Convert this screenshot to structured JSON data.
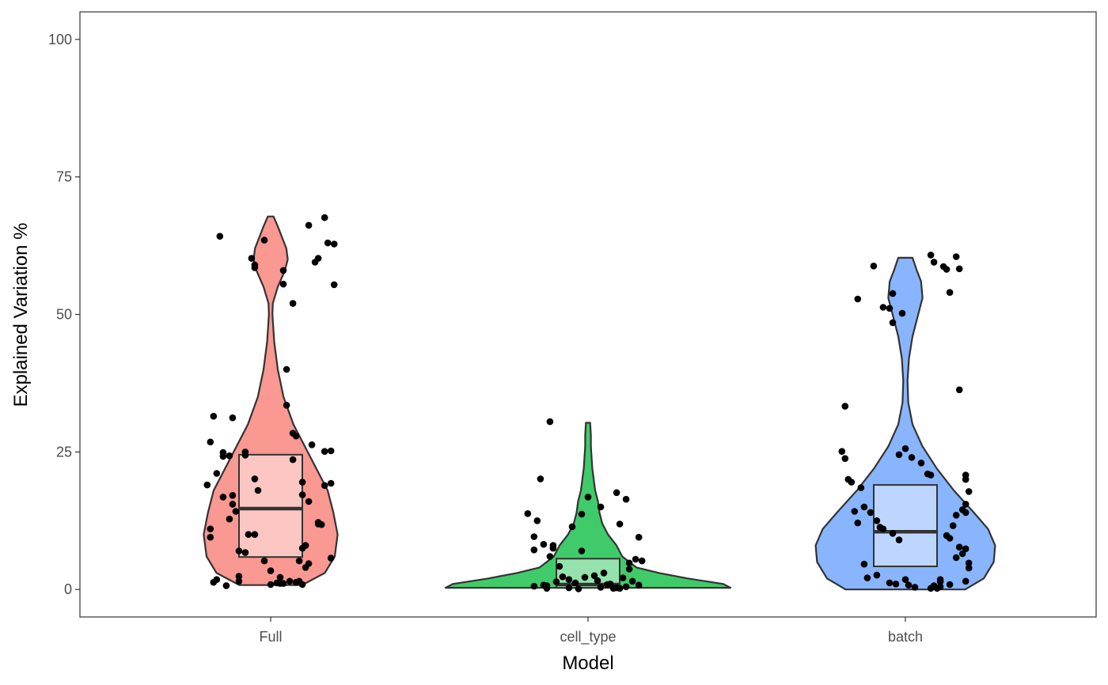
{
  "chart_data": {
    "type": "violin",
    "title": "",
    "xlabel": "Model",
    "ylabel": "Explained Variation %",
    "ylim": [
      -5,
      105
    ],
    "yticks": [
      0,
      25,
      50,
      75,
      100
    ],
    "ytick_labels": [
      "0",
      "25",
      "50",
      "75",
      "100"
    ],
    "grid": false,
    "legend": "none",
    "categories": [
      "Full",
      "cell_type",
      "batch"
    ],
    "colors": [
      "#F8766D",
      "#00BA38",
      "#619CFF"
    ],
    "boxplots": [
      {
        "category": "Full",
        "q1": 5.9,
        "median": 14.7,
        "q3": 24.5
      },
      {
        "category": "cell_type",
        "q1": 0.3,
        "median": 0.9,
        "q3": 5.6
      },
      {
        "category": "batch",
        "q1": 4.2,
        "median": 10.5,
        "q3": 19.0
      }
    ],
    "violins": [
      {
        "category": "Full",
        "y": [
          0.8,
          3,
          6,
          10,
          14,
          18,
          22,
          26,
          30,
          35,
          40,
          45,
          50,
          52,
          55,
          58,
          60,
          62,
          64,
          66,
          67.8
        ],
        "density": [
          0.22,
          0.38,
          0.45,
          0.47,
          0.44,
          0.4,
          0.32,
          0.24,
          0.16,
          0.09,
          0.05,
          0.025,
          0.012,
          0.015,
          0.05,
          0.1,
          0.12,
          0.11,
          0.08,
          0.05,
          0.02
        ]
      },
      {
        "category": "cell_type",
        "y": [
          0.3,
          1,
          2,
          3,
          4,
          6,
          8,
          10,
          12,
          14,
          16,
          18,
          20,
          22,
          24,
          26,
          28,
          30.3
        ],
        "density": [
          1.0,
          0.95,
          0.7,
          0.5,
          0.34,
          0.24,
          0.2,
          0.14,
          0.1,
          0.08,
          0.07,
          0.05,
          0.04,
          0.03,
          0.025,
          0.02,
          0.02,
          0.015
        ]
      },
      {
        "category": "batch",
        "y": [
          0,
          2,
          5,
          8,
          11,
          14,
          18,
          22,
          26,
          30,
          34,
          38,
          42,
          46,
          50,
          53,
          56,
          58,
          60.3
        ],
        "density": [
          0.42,
          0.55,
          0.62,
          0.63,
          0.58,
          0.48,
          0.34,
          0.22,
          0.12,
          0.05,
          0.02,
          0.015,
          0.025,
          0.05,
          0.09,
          0.12,
          0.11,
          0.08,
          0.05
        ]
      }
    ],
    "points": [
      {
        "category": "Full",
        "x": [
          -0.16,
          -0.18,
          -0.19,
          -0.13,
          -0.17,
          -0.2,
          -0.15,
          -0.11,
          -0.12,
          -0.12,
          -0.08,
          -0.15,
          -0.19,
          -0.19,
          -0.18,
          -0.14,
          -0.1,
          -0.17,
          -0.06,
          -0.05,
          -0.05,
          -0.02,
          -0.05,
          0.0,
          0.04,
          0.04,
          0.05,
          0.07,
          0.08,
          0.07,
          0.1,
          0.1,
          0.12,
          0.12,
          0.15,
          0.14,
          0.17,
          0.18,
          0.2,
          0.2,
          0.19,
          0.17,
          0.19,
          0.17,
          0.13,
          0.15,
          0.15,
          0.16,
          0.19,
          0.09,
          0.11,
          0.1,
          0.12,
          0.11,
          0.09,
          0.08,
          0.1,
          0.04,
          0.03,
          0.0,
          -0.02,
          -0.08,
          -0.1,
          -0.13,
          -0.12,
          -0.15,
          -0.08,
          -0.05,
          -0.04,
          -0.07,
          0.05,
          0.07,
          -0.1,
          0.06,
          0.02,
          0.03
        ],
        "y": [
          64.2,
          31.5,
          26.8,
          24.3,
          21.1,
          19.0,
          16.8,
          14.2,
          15.5,
          31.2,
          25.0,
          24.2,
          11.0,
          9.5,
          1.3,
          0.7,
          1.5,
          1.8,
          60.2,
          59.0,
          58.5,
          63.5,
          10.0,
          0.9,
          58.0,
          55.5,
          40.0,
          28.4,
          27.9,
          23.6,
          19.5,
          17.2,
          16.0,
          66.2,
          60.2,
          59.5,
          67.6,
          63.0,
          62.8,
          55.4,
          25.2,
          25.1,
          19.3,
          18.9,
          26.3,
          12.2,
          11.9,
          11.8,
          5.7,
          5.2,
          8.0,
          7.5,
          4.7,
          4.0,
          1.5,
          1.3,
          0.9,
          1.1,
          2.2,
          3.4,
          5.2,
          6.7,
          7.0,
          12.8,
          17.1,
          24.9,
          24.4,
          20.1,
          18.0,
          10.0,
          33.5,
          52.0,
          2.4,
          1.5,
          1.2,
          1.1
        ]
      },
      {
        "category": "cell_type",
        "x": [
          -0.12,
          -0.15,
          -0.19,
          -0.16,
          -0.17,
          -0.14,
          -0.11,
          -0.11,
          -0.17,
          -0.12,
          -0.09,
          -0.05,
          -0.02,
          0.0,
          -0.02,
          0.04,
          0.09,
          0.12,
          0.1,
          0.16,
          0.17,
          0.15,
          0.13,
          0.14,
          0.16,
          0.1,
          0.07,
          0.05,
          0.02,
          0.04,
          0.09,
          0.11,
          0.13,
          -0.08,
          -0.06,
          -0.04,
          -0.1,
          -0.14,
          -0.17,
          -0.13,
          -0.06,
          -0.03,
          0.06,
          0.08,
          0.12,
          0.03,
          -0.01,
          -0.13
        ],
        "y": [
          30.5,
          20.1,
          13.8,
          12.5,
          9.6,
          8.2,
          8.0,
          7.5,
          7.2,
          6.0,
          4.2,
          11.4,
          7.0,
          16.8,
          13.7,
          15.0,
          17.6,
          16.4,
          11.9,
          9.5,
          5.2,
          5.5,
          4.8,
          1.5,
          0.8,
          0.2,
          1.0,
          3.0,
          2.5,
          0.4,
          0.3,
          2.1,
          3.7,
          2.3,
          1.8,
          1.2,
          1.4,
          0.8,
          0.6,
          0.7,
          0.3,
          0.1,
          0.9,
          0.2,
          0.5,
          1.6,
          2.2,
          0.2
        ]
      },
      {
        "category": "batch",
        "x": [
          -0.1,
          -0.15,
          -0.19,
          -0.2,
          -0.19,
          -0.18,
          -0.17,
          -0.14,
          -0.13,
          -0.11,
          -0.09,
          -0.08,
          -0.07,
          -0.04,
          -0.02,
          0.0,
          0.02,
          0.05,
          0.07,
          0.08,
          0.08,
          0.09,
          0.12,
          0.13,
          0.14,
          0.16,
          0.17,
          0.17,
          0.19,
          0.19,
          0.2,
          0.19,
          0.18,
          0.19,
          0.16,
          0.15,
          0.13,
          0.14,
          0.17,
          0.19,
          0.18,
          0.16,
          0.2,
          0.2,
          0.19,
          0.14,
          0.11,
          0.1,
          0.09,
          0.11,
          -0.04,
          -0.05,
          -0.07,
          -0.04,
          -0.01,
          -0.02,
          0.0,
          -0.12,
          -0.13,
          -0.16,
          -0.15,
          -0.09,
          -0.05,
          -0.03,
          0.01,
          0.03,
          0.08,
          0.11
        ],
        "y": [
          58.8,
          52.8,
          33.3,
          25.1,
          23.8,
          20.0,
          19.5,
          18.5,
          15.0,
          14.0,
          12.5,
          11.3,
          11.0,
          10.2,
          9.0,
          25.6,
          24.0,
          23.0,
          21.0,
          20.8,
          60.8,
          59.5,
          58.7,
          58.2,
          54.0,
          60.5,
          58.3,
          36.3,
          20.8,
          20.0,
          17.8,
          15.5,
          14.5,
          14.0,
          13.5,
          11.6,
          9.8,
          9.3,
          7.7,
          7.4,
          6.5,
          5.8,
          4.8,
          3.9,
          1.5,
          0.9,
          0.5,
          0.2,
          0.7,
          1.8,
          48.5,
          51.1,
          51.3,
          53.8,
          50.2,
          24.5,
          1.8,
          2.1,
          4.6,
          14.2,
          12.1,
          2.6,
          1.2,
          1.0,
          0.8,
          0.4,
          0.2,
          1.4
        ]
      }
    ]
  }
}
